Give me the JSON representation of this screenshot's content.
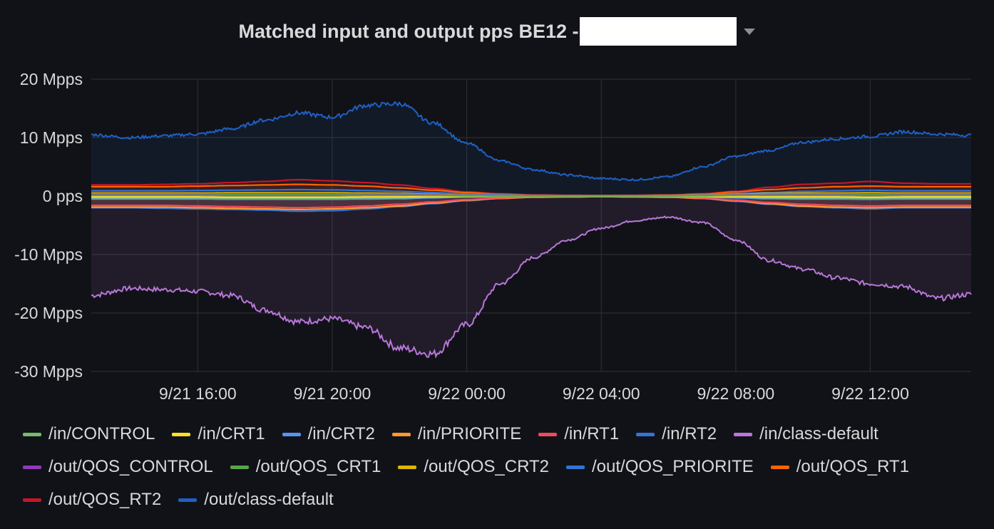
{
  "panel": {
    "title": "Matched input and output pps BE12 -"
  },
  "chart_data": {
    "type": "area",
    "title": "Matched input and output pps BE12 -",
    "xlabel": "",
    "ylabel": "",
    "x_ticks": [
      "9/21 16:00",
      "9/21 20:00",
      "9/22 00:00",
      "9/22 04:00",
      "9/22 08:00",
      "9/22 12:00"
    ],
    "x_range": [
      "9/21 12:50",
      "9/22 15:00"
    ],
    "y_ticks": [
      "20 Mpps",
      "10 Mpps",
      "0 pps",
      "-10 Mpps",
      "-20 Mpps",
      "-30 Mpps"
    ],
    "ylim": [
      -30,
      20
    ],
    "y_unit": "Mpps",
    "grid": true,
    "legend_position": "bottom",
    "x": [
      "9/21 12:50",
      "9/21 14:00",
      "9/21 15:00",
      "9/21 16:00",
      "9/21 17:00",
      "9/21 18:00",
      "9/21 19:00",
      "9/21 20:00",
      "9/21 21:00",
      "9/21 22:00",
      "9/21 23:00",
      "9/22 00:00",
      "9/22 01:00",
      "9/22 02:00",
      "9/22 03:00",
      "9/22 04:00",
      "9/22 05:00",
      "9/22 06:00",
      "9/22 07:00",
      "9/22 08:00",
      "9/22 09:00",
      "9/22 10:00",
      "9/22 11:00",
      "9/22 12:00",
      "9/22 13:00",
      "9/22 14:00",
      "9/22 15:00"
    ],
    "series": [
      {
        "name": "/in/CONTROL",
        "color": "#73bf69",
        "values": [
          -0.3,
          -0.3,
          -0.3,
          -0.3,
          -0.35,
          -0.35,
          -0.35,
          -0.35,
          -0.3,
          -0.3,
          -0.2,
          -0.1,
          -0.05,
          -0.05,
          -0.05,
          -0.05,
          -0.05,
          -0.05,
          -0.1,
          -0.2,
          -0.3,
          -0.3,
          -0.3,
          -0.35,
          -0.3,
          -0.3,
          -0.3
        ]
      },
      {
        "name": "/in/CRT1",
        "color": "#fade2a",
        "values": [
          -0.15,
          -0.15,
          -0.15,
          -0.15,
          -0.2,
          -0.2,
          -0.2,
          -0.2,
          -0.15,
          -0.15,
          -0.1,
          -0.05,
          -0.02,
          -0.02,
          -0.02,
          -0.02,
          -0.02,
          -0.02,
          -0.05,
          -0.1,
          -0.15,
          -0.15,
          -0.15,
          -0.2,
          -0.15,
          -0.15,
          -0.15
        ]
      },
      {
        "name": "/in/CRT2",
        "color": "#5794f2",
        "values": [
          -0.5,
          -0.5,
          -0.5,
          -0.5,
          -0.55,
          -0.55,
          -0.55,
          -0.55,
          -0.5,
          -0.45,
          -0.3,
          -0.15,
          -0.08,
          -0.05,
          -0.05,
          -0.05,
          -0.05,
          -0.08,
          -0.15,
          -0.3,
          -0.45,
          -0.5,
          -0.5,
          -0.55,
          -0.5,
          -0.5,
          -0.5
        ]
      },
      {
        "name": "/in/PRIORITE",
        "color": "#ff9830",
        "values": [
          -1.9,
          -1.9,
          -1.9,
          -2.0,
          -2.1,
          -2.2,
          -2.3,
          -2.2,
          -2.0,
          -1.7,
          -1.2,
          -0.7,
          -0.4,
          -0.2,
          -0.15,
          -0.1,
          -0.15,
          -0.2,
          -0.4,
          -0.8,
          -1.3,
          -1.7,
          -1.9,
          -2.0,
          -1.9,
          -1.9,
          -1.9
        ]
      },
      {
        "name": "/in/RT1",
        "color": "#f2495c",
        "values": [
          -1.6,
          -1.6,
          -1.6,
          -1.7,
          -1.8,
          -1.9,
          -2.0,
          -1.9,
          -1.7,
          -1.4,
          -1.0,
          -0.6,
          -0.3,
          -0.15,
          -0.1,
          -0.1,
          -0.1,
          -0.15,
          -0.3,
          -0.7,
          -1.1,
          -1.4,
          -1.6,
          -1.7,
          -1.6,
          -1.6,
          -1.6
        ]
      },
      {
        "name": "/in/RT2",
        "color": "#3274d9",
        "values": [
          -2.0,
          -2.0,
          -2.1,
          -2.2,
          -2.3,
          -2.4,
          -2.6,
          -2.5,
          -2.2,
          -1.8,
          -1.3,
          -0.8,
          -0.4,
          -0.2,
          -0.15,
          -0.1,
          -0.15,
          -0.2,
          -0.4,
          -0.9,
          -1.4,
          -1.8,
          -2.0,
          -2.2,
          -2.0,
          -2.0,
          -2.0
        ]
      },
      {
        "name": "/in/class-default",
        "color": "#b877d9",
        "values": [
          -17,
          -15.8,
          -16,
          -16.3,
          -17,
          -19.5,
          -21.5,
          -21,
          -22.5,
          -26,
          -27,
          -22,
          -15,
          -10.5,
          -7.5,
          -5.5,
          -4.2,
          -3.6,
          -4.5,
          -7.5,
          -11,
          -12.5,
          -14,
          -15,
          -15.5,
          -17.5,
          -16.8
        ]
      },
      {
        "name": "/out/QOS_CONTROL",
        "color": "#8f3bb8",
        "values": [
          0.3,
          0.3,
          0.3,
          0.3,
          0.35,
          0.35,
          0.35,
          0.35,
          0.3,
          0.3,
          0.2,
          0.1,
          0.05,
          0.05,
          0.05,
          0.05,
          0.05,
          0.05,
          0.1,
          0.2,
          0.3,
          0.3,
          0.3,
          0.35,
          0.3,
          0.3,
          0.3
        ]
      },
      {
        "name": "/out/QOS_CRT1",
        "color": "#56a64b",
        "values": [
          0.15,
          0.15,
          0.15,
          0.15,
          0.2,
          0.2,
          0.2,
          0.2,
          0.15,
          0.15,
          0.1,
          0.05,
          0.02,
          0.02,
          0.02,
          0.02,
          0.02,
          0.02,
          0.05,
          0.1,
          0.15,
          0.15,
          0.15,
          0.2,
          0.15,
          0.15,
          0.15
        ]
      },
      {
        "name": "/out/QOS_CRT2",
        "color": "#e0b400",
        "values": [
          0.5,
          0.5,
          0.5,
          0.5,
          0.55,
          0.55,
          0.55,
          0.55,
          0.5,
          0.45,
          0.3,
          0.15,
          0.08,
          0.05,
          0.05,
          0.05,
          0.05,
          0.08,
          0.15,
          0.3,
          0.45,
          0.5,
          0.5,
          0.55,
          0.5,
          0.5,
          0.5
        ]
      },
      {
        "name": "/out/QOS_PRIORITE",
        "color": "#3274d9",
        "values": [
          0.9,
          0.9,
          0.9,
          0.95,
          1.0,
          1.05,
          1.1,
          1.05,
          0.95,
          0.8,
          0.6,
          0.35,
          0.2,
          0.1,
          0.08,
          0.06,
          0.08,
          0.1,
          0.2,
          0.4,
          0.6,
          0.8,
          0.9,
          1.0,
          0.9,
          0.9,
          0.9
        ]
      },
      {
        "name": "/out/QOS_RT1",
        "color": "#fa6400",
        "values": [
          1.6,
          1.6,
          1.6,
          1.7,
          1.8,
          1.9,
          2.0,
          1.9,
          1.7,
          1.4,
          1.0,
          0.6,
          0.3,
          0.15,
          0.1,
          0.1,
          0.1,
          0.15,
          0.3,
          0.7,
          1.1,
          1.4,
          1.6,
          1.7,
          1.6,
          1.6,
          1.6
        ]
      },
      {
        "name": "/out/QOS_RT2",
        "color": "#c4162a",
        "values": [
          1.9,
          1.9,
          2.0,
          2.1,
          2.3,
          2.5,
          2.8,
          2.6,
          2.3,
          1.9,
          1.3,
          0.7,
          0.4,
          0.2,
          0.15,
          0.1,
          0.15,
          0.2,
          0.4,
          0.8,
          1.5,
          2.0,
          2.2,
          2.5,
          2.2,
          2.1,
          2.1
        ]
      },
      {
        "name": "/out/class-default",
        "color": "#1f60c4",
        "values": [
          10.5,
          10,
          10.3,
          10.6,
          11.5,
          13,
          14.2,
          13.5,
          15.5,
          15.8,
          12.5,
          9,
          6,
          4.5,
          3.6,
          3.0,
          2.8,
          3.3,
          5,
          6.8,
          7.8,
          9.2,
          9.8,
          10.2,
          11,
          10.6,
          10.4
        ]
      }
    ]
  }
}
